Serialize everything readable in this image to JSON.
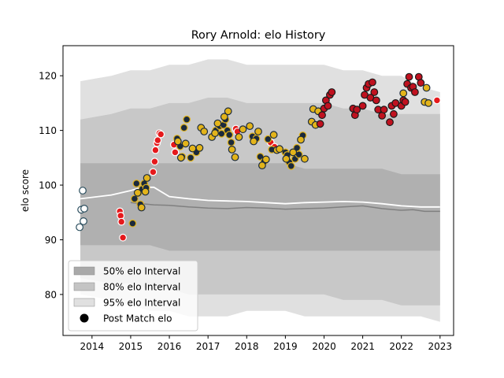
{
  "chart_data": {
    "type": "scatter",
    "title": "Rory Arnold: elo History",
    "xlabel": "",
    "ylabel": "elo score",
    "xlim": [
      2013.25,
      2023.35
    ],
    "ylim": [
      72.5,
      125.5
    ],
    "x_ticks": [
      2014,
      2015,
      2016,
      2017,
      2018,
      2019,
      2020,
      2021,
      2022,
      2023
    ],
    "x_tick_labels": [
      "2014",
      "2015",
      "2016",
      "2017",
      "2018",
      "2019",
      "2020",
      "2021",
      "2022",
      "2023"
    ],
    "y_ticks": [
      80,
      90,
      100,
      110,
      120
    ],
    "y_tick_labels": [
      "80",
      "90",
      "100",
      "110",
      "120"
    ],
    "grid": false,
    "legend_position": "lower-left",
    "legend": [
      {
        "label": "50% elo Interval",
        "kind": "band",
        "color": "#a9a9a9"
      },
      {
        "label": "80% elo Interval",
        "kind": "band",
        "color": "#c4c4c4"
      },
      {
        "label": "95% elo Interval",
        "kind": "band",
        "color": "#e0e0e0"
      },
      {
        "label": "Post Match elo",
        "kind": "marker",
        "color": "#000000"
      }
    ],
    "bands": {
      "x": [
        2013.7,
        2014.5,
        2015.0,
        2015.5,
        2016.0,
        2016.5,
        2017.0,
        2017.5,
        2018.0,
        2018.5,
        2019.0,
        2019.5,
        2020.0,
        2020.5,
        2021.0,
        2021.5,
        2022.0,
        2022.5,
        2023.0
      ],
      "p95_upper": [
        119,
        120,
        121,
        121,
        122,
        122,
        123,
        123,
        122,
        122,
        122,
        122,
        122,
        121,
        121,
        120,
        120,
        118,
        117
      ],
      "p95_lower": [
        80,
        79,
        78,
        77,
        77,
        76,
        76,
        76,
        77,
        77,
        77,
        76,
        76,
        76,
        76,
        76,
        76,
        76,
        75
      ],
      "p80_upper": [
        112,
        113,
        114,
        114,
        115,
        115,
        116,
        116,
        115,
        115,
        115,
        115,
        115,
        114,
        114,
        113,
        113,
        113,
        113
      ],
      "p80_lower": [
        83,
        82,
        82,
        81,
        81,
        80,
        80,
        80,
        80,
        80,
        80,
        80,
        80,
        79,
        79,
        79,
        78,
        78,
        78
      ],
      "p50_upper": [
        104,
        104,
        104,
        104,
        104,
        104,
        104,
        104,
        104,
        104,
        104,
        103,
        103,
        103,
        103,
        103,
        102,
        102,
        102
      ],
      "p50_lower": [
        89,
        89,
        89,
        89,
        88,
        88,
        88,
        88,
        88,
        88,
        88,
        88,
        88,
        88,
        88,
        88,
        88,
        88,
        88
      ]
    },
    "median_line": {
      "color": "#808080",
      "x": [
        2015.0,
        2015.3,
        2015.6,
        2016.0,
        2016.5,
        2017.0,
        2017.5,
        2018.0,
        2018.5,
        2019.0,
        2019.5,
        2020.0,
        2020.5,
        2021.0,
        2021.5,
        2022.0,
        2022.3,
        2022.6,
        2023.0
      ],
      "y": [
        96.8,
        96.6,
        96.4,
        96.3,
        96.0,
        95.8,
        95.7,
        95.9,
        95.8,
        95.6,
        95.7,
        95.8,
        96.0,
        96.2,
        95.7,
        95.4,
        95.5,
        95.2,
        95.2
      ]
    },
    "mean_line": {
      "color": "#ffffff",
      "x": [
        2013.7,
        2014.5,
        2015.0,
        2015.3,
        2015.6,
        2016.0,
        2016.5,
        2017.0,
        2017.5,
        2018.0,
        2018.5,
        2019.0,
        2019.5,
        2020.0,
        2020.5,
        2021.0,
        2021.5,
        2022.0,
        2022.5,
        2023.0
      ],
      "y": [
        97.5,
        98.2,
        99.0,
        99.6,
        99.6,
        97.9,
        97.5,
        97.2,
        97.1,
        97.0,
        96.8,
        96.6,
        96.8,
        96.9,
        97.0,
        96.9,
        96.6,
        96.2,
        96.0,
        96.0
      ]
    },
    "series": [
      {
        "color": "#ffffff",
        "edge": "#2b4e5e",
        "points": [
          [
            2013.68,
            92.3
          ],
          [
            2013.72,
            95.5
          ],
          [
            2013.76,
            99.0
          ],
          [
            2013.78,
            93.4
          ],
          [
            2013.8,
            95.7
          ]
        ]
      },
      {
        "color": "#e5191c",
        "edge": "#ffffff",
        "points": [
          [
            2014.72,
            95.2
          ],
          [
            2014.74,
            94.4
          ],
          [
            2014.76,
            93.3
          ],
          [
            2014.8,
            90.4
          ],
          [
            2015.58,
            102.4
          ],
          [
            2015.62,
            104.3
          ],
          [
            2015.64,
            106.4
          ],
          [
            2015.68,
            107.7
          ],
          [
            2015.7,
            108.2
          ],
          [
            2015.74,
            109.5
          ],
          [
            2015.78,
            109.3
          ],
          [
            2016.12,
            107.4
          ],
          [
            2016.15,
            106.0
          ],
          [
            2017.72,
            110.3
          ],
          [
            2017.76,
            109.8
          ],
          [
            2018.62,
            107.8
          ],
          [
            2018.72,
            107.0
          ],
          [
            2022.92,
            115.5
          ]
        ]
      },
      {
        "color": "#1b2a3c",
        "edge": "#e3b41a",
        "points": [
          [
            2015.05,
            93.0
          ],
          [
            2015.1,
            97.5
          ],
          [
            2015.15,
            100.3
          ],
          [
            2015.2,
            98.6
          ],
          [
            2015.25,
            96.5
          ],
          [
            2015.3,
            99.3
          ],
          [
            2015.35,
            100.3
          ],
          [
            2015.4,
            99.5
          ],
          [
            2016.2,
            108.5
          ],
          [
            2016.28,
            107.1
          ],
          [
            2016.33,
            105.2
          ],
          [
            2016.38,
            110.5
          ],
          [
            2016.45,
            112.0
          ],
          [
            2016.55,
            105.0
          ],
          [
            2016.7,
            106.0
          ],
          [
            2017.2,
            110.0
          ],
          [
            2017.3,
            110.8
          ],
          [
            2017.35,
            109.4
          ],
          [
            2017.4,
            111.0
          ],
          [
            2017.45,
            112.0
          ],
          [
            2017.5,
            110.0
          ],
          [
            2017.55,
            109.2
          ],
          [
            2017.6,
            107.8
          ],
          [
            2018.15,
            108.9
          ],
          [
            2018.25,
            108.5
          ],
          [
            2018.35,
            105.2
          ],
          [
            2018.45,
            104.3
          ],
          [
            2018.55,
            108.4
          ],
          [
            2018.65,
            106.5
          ],
          [
            2019.0,
            106.0
          ],
          [
            2019.05,
            105.5
          ],
          [
            2019.1,
            104.2
          ],
          [
            2019.15,
            103.5
          ],
          [
            2019.25,
            104.8
          ],
          [
            2019.3,
            106.8
          ],
          [
            2019.35,
            105.6
          ],
          [
            2019.45,
            109.1
          ]
        ]
      },
      {
        "color": "#e3b41a",
        "edge": "#1b2a3c",
        "points": [
          [
            2015.18,
            98.6
          ],
          [
            2015.28,
            95.9
          ],
          [
            2015.38,
            98.8
          ],
          [
            2015.42,
            101.3
          ],
          [
            2016.22,
            108.0
          ],
          [
            2016.3,
            105.0
          ],
          [
            2016.42,
            107.6
          ],
          [
            2016.6,
            106.7
          ],
          [
            2016.78,
            106.8
          ],
          [
            2016.82,
            110.5
          ],
          [
            2016.9,
            109.8
          ],
          [
            2017.1,
            108.8
          ],
          [
            2017.18,
            109.5
          ],
          [
            2017.25,
            111.3
          ],
          [
            2017.42,
            112.5
          ],
          [
            2017.52,
            113.5
          ],
          [
            2017.62,
            106.5
          ],
          [
            2017.7,
            105.1
          ],
          [
            2017.8,
            108.8
          ],
          [
            2017.9,
            110.2
          ],
          [
            2018.08,
            110.8
          ],
          [
            2018.18,
            108.0
          ],
          [
            2018.3,
            109.8
          ],
          [
            2018.4,
            103.6
          ],
          [
            2018.5,
            104.7
          ],
          [
            2018.7,
            109.2
          ],
          [
            2018.78,
            106.4
          ],
          [
            2018.85,
            106.6
          ],
          [
            2019.02,
            104.8
          ],
          [
            2019.2,
            106.0
          ],
          [
            2019.4,
            108.3
          ],
          [
            2019.5,
            104.8
          ],
          [
            2019.68,
            111.6
          ],
          [
            2019.72,
            113.9
          ],
          [
            2019.78,
            111.0
          ],
          [
            2019.85,
            113.5
          ],
          [
            2022.05,
            116.8
          ],
          [
            2022.6,
            115.2
          ],
          [
            2022.65,
            117.8
          ],
          [
            2022.7,
            115.0
          ]
        ]
      },
      {
        "color": "#c0111f",
        "edge": "#1a1a1a",
        "points": [
          [
            2019.9,
            111.2
          ],
          [
            2019.95,
            112.8
          ],
          [
            2020.0,
            114.0
          ],
          [
            2020.05,
            115.5
          ],
          [
            2020.1,
            114.5
          ],
          [
            2020.15,
            116.5
          ],
          [
            2020.2,
            117.0
          ],
          [
            2020.75,
            114.0
          ],
          [
            2020.8,
            112.8
          ],
          [
            2020.85,
            113.8
          ],
          [
            2021.0,
            114.5
          ],
          [
            2021.05,
            116.5
          ],
          [
            2021.1,
            117.8
          ],
          [
            2021.15,
            118.5
          ],
          [
            2021.2,
            116.0
          ],
          [
            2021.25,
            118.8
          ],
          [
            2021.3,
            117.0
          ],
          [
            2021.35,
            115.5
          ],
          [
            2021.4,
            113.8
          ],
          [
            2021.5,
            112.7
          ],
          [
            2021.55,
            113.8
          ],
          [
            2021.7,
            111.5
          ],
          [
            2021.75,
            114.5
          ],
          [
            2021.8,
            113.0
          ],
          [
            2021.85,
            115.0
          ],
          [
            2022.0,
            114.5
          ],
          [
            2022.05,
            115.5
          ],
          [
            2022.1,
            115.2
          ],
          [
            2022.15,
            118.5
          ],
          [
            2022.2,
            119.8
          ],
          [
            2022.25,
            117.8
          ],
          [
            2022.3,
            118.0
          ],
          [
            2022.35,
            117.0
          ],
          [
            2022.45,
            119.8
          ],
          [
            2022.5,
            118.7
          ]
        ]
      }
    ]
  }
}
